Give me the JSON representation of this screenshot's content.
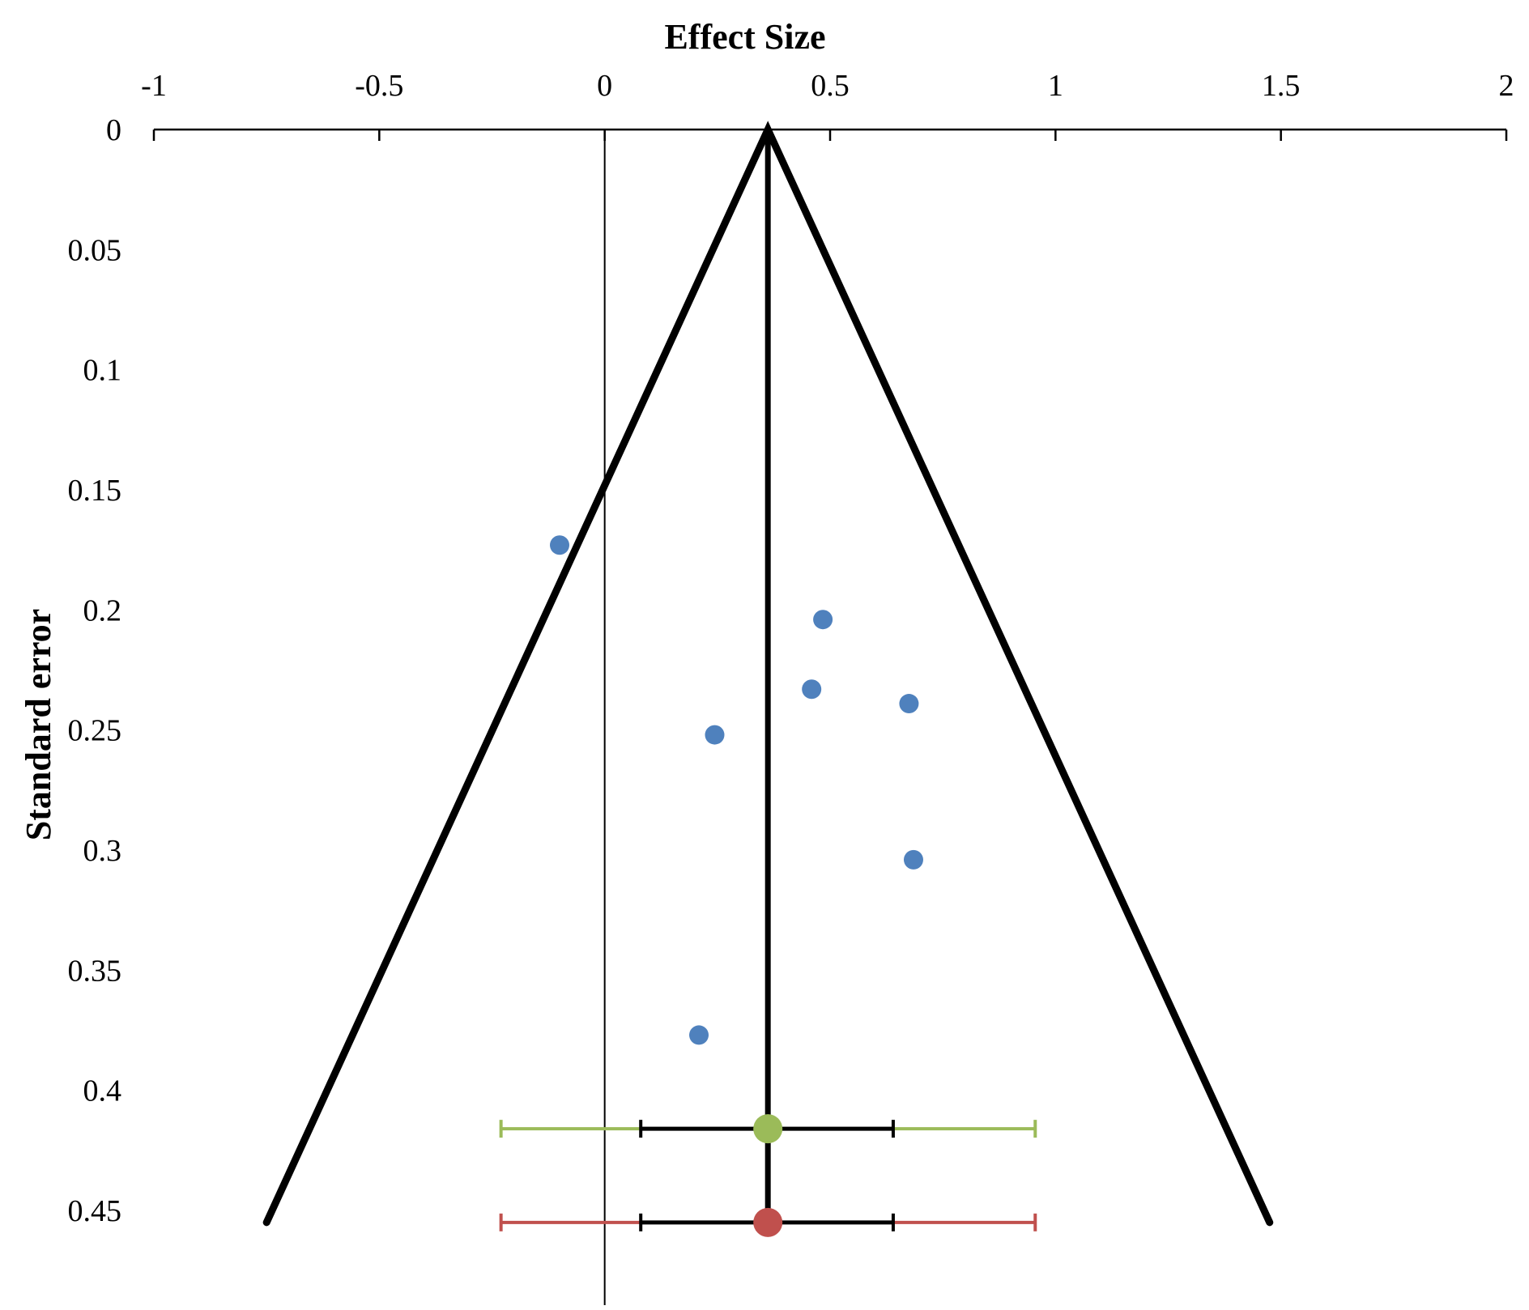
{
  "chart_data": {
    "type": "scatter",
    "title": "",
    "xlabel": "Effect Size",
    "ylabel": "Standard error",
    "xlim": [
      -1,
      2
    ],
    "ylim": [
      0,
      0.49
    ],
    "y_axis_inverted": true,
    "x_axis_position": "top",
    "grid": false,
    "legend": "none",
    "x_ticks": [
      -1,
      -0.5,
      0,
      0.5,
      1,
      1.5,
      2
    ],
    "x_tick_labels": [
      "-1",
      "-0.5",
      "0",
      "0.5",
      "1",
      "1.5",
      "2"
    ],
    "y_ticks": [
      0,
      0.05,
      0.1,
      0.15,
      0.2,
      0.25,
      0.3,
      0.35,
      0.4,
      0.45
    ],
    "y_tick_labels": [
      "0",
      "0.05",
      "0.1",
      "0.15",
      "0.2",
      "0.25",
      "0.3",
      "0.35",
      "0.4",
      "0.45"
    ],
    "studies": [
      {
        "x": -0.1,
        "y": 0.173
      },
      {
        "x": 0.484,
        "y": 0.204
      },
      {
        "x": 0.459,
        "y": 0.233
      },
      {
        "x": 0.675,
        "y": 0.239
      },
      {
        "x": 0.244,
        "y": 0.252
      },
      {
        "x": 0.685,
        "y": 0.304
      },
      {
        "x": 0.209,
        "y": 0.377
      }
    ],
    "pooled_effect": 0.362,
    "funnel": {
      "center": 0.362,
      "apex_se": 0,
      "base_se": 0.455,
      "base_left": -0.75,
      "base_right": 1.475
    },
    "summary_estimates": [
      {
        "y": 0.416,
        "estimate": 0.362,
        "ci": [
          0.08,
          0.64
        ],
        "pi": [
          -0.23,
          0.955
        ],
        "color": "#9bbb59"
      },
      {
        "y": 0.455,
        "estimate": 0.362,
        "ci": [
          0.08,
          0.64
        ],
        "pi": [
          -0.23,
          0.955
        ],
        "color": "#c0504d"
      }
    ],
    "colors": {
      "study_points": "#4f81bd",
      "funnel": "#000000",
      "zero_line": "#000000"
    }
  }
}
